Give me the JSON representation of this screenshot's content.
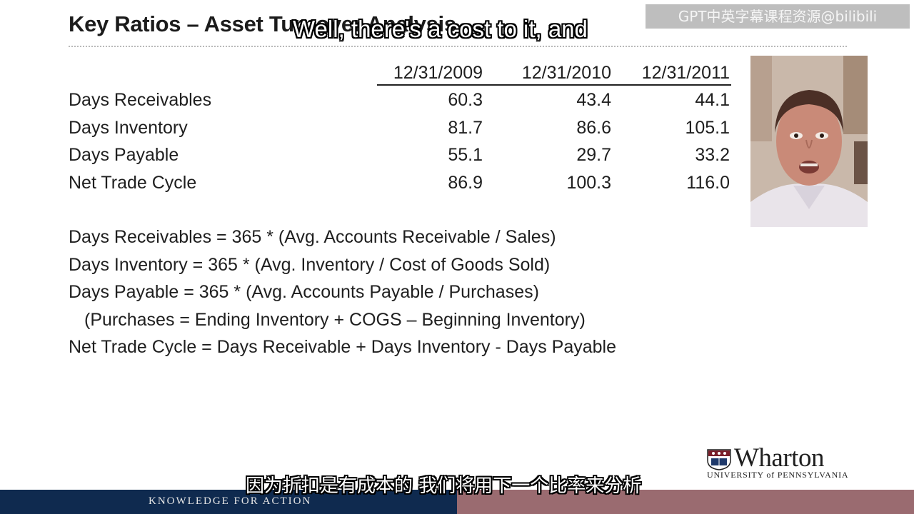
{
  "slide": {
    "title": "Key Ratios – Asset Turnover Analysis",
    "subtitle_en": "Well, there's a cost to it, and",
    "subtitle_zh": "因为折扣是有成本的 我们将用下一个比率来分析",
    "watermark": "GPT中英字幕课程资源@bilibili"
  },
  "table": {
    "columns": [
      "12/31/2009",
      "12/31/2010",
      "12/31/2011"
    ],
    "rows": [
      {
        "label": "Days Receivables",
        "values": [
          "60.3",
          "43.4",
          "44.1"
        ]
      },
      {
        "label": "Days Inventory",
        "values": [
          "81.7",
          "86.6",
          "105.1"
        ]
      },
      {
        "label": "Days Payable",
        "values": [
          "55.1",
          "29.7",
          "33.2"
        ]
      },
      {
        "label": "Net Trade Cycle",
        "values": [
          "86.9",
          "100.3",
          "116.0"
        ]
      }
    ]
  },
  "formulas": [
    "Days Receivables =  365 * (Avg. Accounts Receivable / Sales)",
    "Days Inventory = 365 * (Avg. Inventory / Cost of Goods Sold)",
    "Days Payable = 365 * (Avg. Accounts Payable / Purchases)",
    "(Purchases = Ending Inventory + COGS – Beginning Inventory)",
    "Net Trade Cycle = Days Receivable + Days Inventory - Days Payable"
  ],
  "logo": {
    "name": "Wharton",
    "university": "UNIVERSITY of PENNSYLVANIA",
    "icon": "penn-shield-icon"
  },
  "footer": {
    "tagline": "KNOWLEDGE FOR ACTION"
  },
  "colors": {
    "footer_navy": "#0f2a4f",
    "footer_mauve": "#9a6b70"
  }
}
